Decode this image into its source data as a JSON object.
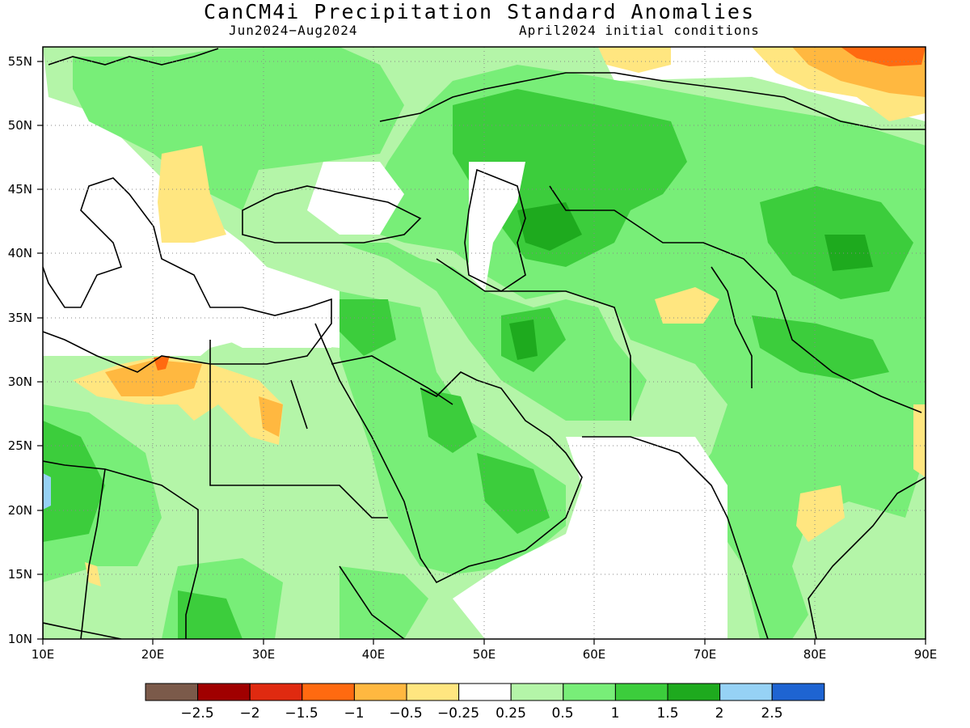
{
  "title": "CanCM4i Precipitation Standard Anomalies",
  "period": "Jun2024−Aug2024",
  "init": "April2024 initial conditions",
  "x_ticks": [
    "10E",
    "20E",
    "30E",
    "40E",
    "50E",
    "60E",
    "70E",
    "80E",
    "90E"
  ],
  "y_ticks": [
    "55N",
    "50N",
    "45N",
    "40N",
    "35N",
    "30N",
    "25N",
    "20N",
    "15N",
    "10N"
  ],
  "colorbar": {
    "colors": [
      "#7b5a4a",
      "#a00000",
      "#e02a10",
      "#ff6a10",
      "#ffb840",
      "#ffe680",
      "#ffffff",
      "#b4f5a8",
      "#78ee78",
      "#3ccd3c",
      "#1eaa1e",
      "#96d2f5",
      "#1e64d2"
    ],
    "labels": [
      "−2.5",
      "−2",
      "−1.5",
      "−1",
      "−0.5",
      "−0.25",
      "0.25",
      "0.5",
      "1",
      "1.5",
      "2",
      "2.5"
    ]
  }
}
